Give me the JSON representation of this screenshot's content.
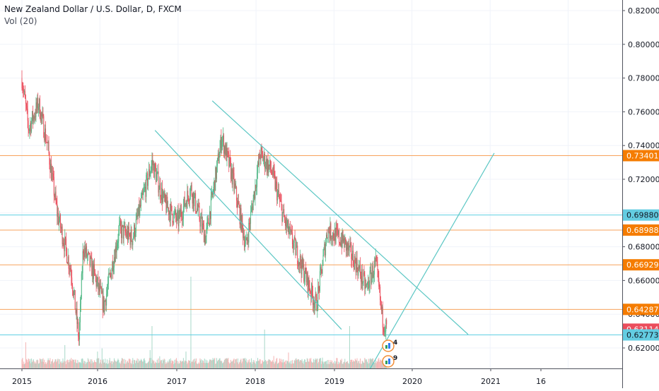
{
  "legend": {
    "symbol_line": "New Zealand Dollar / U.S. Dollar, D, FXCM",
    "volume_line": "Vol (20)"
  },
  "colors": {
    "up": "#53b987",
    "down": "#eb4d5c",
    "vol_up": "#a8d8c8",
    "vol_down": "#f4b5b5",
    "orange_level": "#f7a35c",
    "cyan_level": "#5fd0e3",
    "trendline": "#5cc7c4",
    "axis_text": "#131722",
    "label_orange_bg": "#f57c00",
    "label_cyan_bg": "#63cde2",
    "label_last_bg": "#eb4d5c"
  },
  "chart_data": {
    "type": "candlestick",
    "x_axis_ticks": [
      "2015",
      "2016",
      "2017",
      "2018",
      "2019",
      "2020",
      "2021",
      "16"
    ],
    "y_axis_ticks": [
      "0.82000",
      "0.80000",
      "0.78000",
      "0.76000",
      "0.74000",
      "0.72000",
      "0.70000",
      "0.68000",
      "0.66000",
      "0.64000",
      "0.62000"
    ],
    "ylim": [
      0.6,
      0.825
    ],
    "price_path": [
      {
        "date": "2015-01-01",
        "close": 0.78
      },
      {
        "date": "2015-02-01",
        "close": 0.75
      },
      {
        "date": "2015-03-20",
        "close": 0.765
      },
      {
        "date": "2015-05-01",
        "close": 0.74
      },
      {
        "date": "2015-06-15",
        "close": 0.7
      },
      {
        "date": "2015-08-20",
        "close": 0.665
      },
      {
        "date": "2015-09-25",
        "close": 0.625
      },
      {
        "date": "2015-10-15",
        "close": 0.68
      },
      {
        "date": "2015-12-01",
        "close": 0.665
      },
      {
        "date": "2016-01-20",
        "close": 0.645
      },
      {
        "date": "2016-04-01",
        "close": 0.69
      },
      {
        "date": "2016-06-01",
        "close": 0.685
      },
      {
        "date": "2016-09-01",
        "close": 0.73
      },
      {
        "date": "2016-11-01",
        "close": 0.705
      },
      {
        "date": "2017-01-01",
        "close": 0.695
      },
      {
        "date": "2017-03-01",
        "close": 0.715
      },
      {
        "date": "2017-05-10",
        "close": 0.685
      },
      {
        "date": "2017-07-25",
        "close": 0.745
      },
      {
        "date": "2017-09-15",
        "close": 0.72
      },
      {
        "date": "2017-11-15",
        "close": 0.68
      },
      {
        "date": "2018-01-20",
        "close": 0.735
      },
      {
        "date": "2018-03-15",
        "close": 0.725
      },
      {
        "date": "2018-05-15",
        "close": 0.695
      },
      {
        "date": "2018-07-15",
        "close": 0.675
      },
      {
        "date": "2018-10-10",
        "close": 0.645
      },
      {
        "date": "2018-12-01",
        "close": 0.69
      },
      {
        "date": "2019-02-15",
        "close": 0.683
      },
      {
        "date": "2019-04-15",
        "close": 0.67
      },
      {
        "date": "2019-06-01",
        "close": 0.655
      },
      {
        "date": "2019-07-15",
        "close": 0.67
      },
      {
        "date": "2019-08-15",
        "close": 0.638
      },
      {
        "date": "2019-09-05",
        "close": 0.6311
      }
    ],
    "price_levels": [
      {
        "label": "0.73401",
        "value": 0.73401,
        "style": "orange"
      },
      {
        "label": "0.69880",
        "value": 0.6988,
        "style": "cyan"
      },
      {
        "label": "0.68988",
        "value": 0.68988,
        "style": "orange"
      },
      {
        "label": "0.66929",
        "value": 0.66929,
        "style": "orange"
      },
      {
        "label": "0.64287",
        "value": 0.64287,
        "style": "orange"
      },
      {
        "label": "0.63114",
        "value": 0.63114,
        "style": "last"
      },
      {
        "label": "0.62773",
        "value": 0.62773,
        "style": "cyan"
      }
    ],
    "trendlines": [
      {
        "from": {
          "date": "2016-09-15",
          "value": 0.749
        },
        "to": {
          "date": "2019-02-05",
          "value": 0.631
        }
      },
      {
        "from": {
          "date": "2017-06-10",
          "value": 0.7665
        },
        "to": {
          "date": "2020-09-20",
          "value": 0.628
        }
      },
      {
        "from": {
          "date": "2019-05-15",
          "value": 0.6
        },
        "to": {
          "date": "2021-01-20",
          "value": 0.7355
        }
      }
    ],
    "event_markers": [
      {
        "count": "4"
      },
      {
        "count": "9"
      }
    ]
  }
}
